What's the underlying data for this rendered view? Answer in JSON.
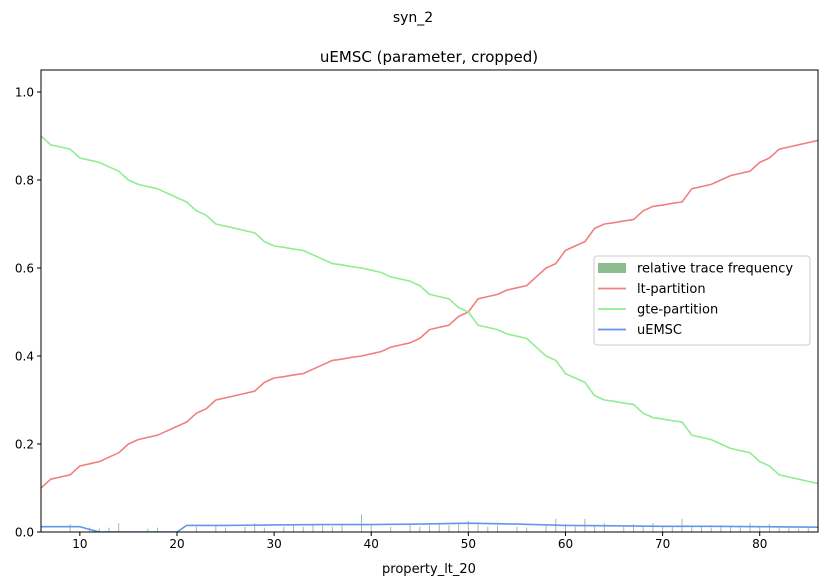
{
  "figure": {
    "suptitle": "syn_2"
  },
  "chart_data": {
    "type": "line",
    "title": "uEMSC (parameter, cropped)",
    "xlabel": "property_lt_20",
    "ylabel": "",
    "xlim": [
      6,
      86
    ],
    "ylim": [
      0,
      1.05
    ],
    "x_ticks": [
      10,
      20,
      30,
      40,
      50,
      60,
      70,
      80
    ],
    "y_ticks": [
      0.0,
      0.2,
      0.4,
      0.6,
      0.8,
      1.0
    ],
    "x_tick_labels": [
      "10",
      "20",
      "30",
      "40",
      "50",
      "60",
      "70",
      "80"
    ],
    "y_tick_labels": [
      "0.0",
      "0.2",
      "0.4",
      "0.6",
      "0.8",
      "1.0"
    ],
    "grid": false,
    "legend_position": "center-right",
    "legend": [
      {
        "label": "relative trace frequency",
        "kind": "patch",
        "color": "#8fbc8f"
      },
      {
        "label": "lt-partition",
        "kind": "line",
        "color": "#f08080"
      },
      {
        "label": "gte-partition",
        "kind": "line",
        "color": "#90ee90"
      },
      {
        "label": "uEMSC",
        "kind": "line",
        "color": "#6495ed"
      }
    ],
    "series": [
      {
        "name": "lt-partition",
        "color": "#f08080",
        "points": [
          [
            6,
            0.1
          ],
          [
            7,
            0.12
          ],
          [
            8,
            0.125
          ],
          [
            9,
            0.13
          ],
          [
            10,
            0.15
          ],
          [
            11,
            0.155
          ],
          [
            12,
            0.16
          ],
          [
            13,
            0.17
          ],
          [
            14,
            0.18
          ],
          [
            15,
            0.2
          ],
          [
            16,
            0.21
          ],
          [
            17,
            0.215
          ],
          [
            18,
            0.22
          ],
          [
            19,
            0.23
          ],
          [
            20,
            0.24
          ],
          [
            21,
            0.25
          ],
          [
            22,
            0.27
          ],
          [
            23,
            0.28
          ],
          [
            24,
            0.3
          ],
          [
            25,
            0.305
          ],
          [
            26,
            0.31
          ],
          [
            27,
            0.315
          ],
          [
            28,
            0.32
          ],
          [
            29,
            0.34
          ],
          [
            30,
            0.35
          ],
          [
            31,
            0.353
          ],
          [
            32,
            0.357
          ],
          [
            33,
            0.36
          ],
          [
            34,
            0.37
          ],
          [
            35,
            0.38
          ],
          [
            36,
            0.39
          ],
          [
            37,
            0.393
          ],
          [
            38,
            0.397
          ],
          [
            39,
            0.4
          ],
          [
            40,
            0.405
          ],
          [
            41,
            0.41
          ],
          [
            42,
            0.42
          ],
          [
            43,
            0.425
          ],
          [
            44,
            0.43
          ],
          [
            45,
            0.44
          ],
          [
            46,
            0.46
          ],
          [
            47,
            0.465
          ],
          [
            48,
            0.47
          ],
          [
            49,
            0.49
          ],
          [
            50,
            0.5
          ],
          [
            51,
            0.53
          ],
          [
            52,
            0.535
          ],
          [
            53,
            0.54
          ],
          [
            54,
            0.55
          ],
          [
            55,
            0.555
          ],
          [
            56,
            0.56
          ],
          [
            57,
            0.58
          ],
          [
            58,
            0.6
          ],
          [
            59,
            0.61
          ],
          [
            60,
            0.64
          ],
          [
            61,
            0.65
          ],
          [
            62,
            0.66
          ],
          [
            63,
            0.69
          ],
          [
            64,
            0.7
          ],
          [
            65,
            0.703
          ],
          [
            66,
            0.707
          ],
          [
            67,
            0.71
          ],
          [
            68,
            0.73
          ],
          [
            69,
            0.74
          ],
          [
            70,
            0.743
          ],
          [
            71,
            0.747
          ],
          [
            72,
            0.75
          ],
          [
            73,
            0.78
          ],
          [
            74,
            0.785
          ],
          [
            75,
            0.79
          ],
          [
            76,
            0.8
          ],
          [
            77,
            0.81
          ],
          [
            78,
            0.815
          ],
          [
            79,
            0.82
          ],
          [
            80,
            0.84
          ],
          [
            81,
            0.85
          ],
          [
            82,
            0.87
          ],
          [
            83,
            0.875
          ],
          [
            84,
            0.88
          ],
          [
            85,
            0.885
          ],
          [
            86,
            0.89
          ]
        ]
      },
      {
        "name": "gte-partition",
        "color": "#90ee90",
        "points": [
          [
            6,
            0.9
          ],
          [
            7,
            0.88
          ],
          [
            8,
            0.875
          ],
          [
            9,
            0.87
          ],
          [
            10,
            0.85
          ],
          [
            11,
            0.845
          ],
          [
            12,
            0.84
          ],
          [
            13,
            0.83
          ],
          [
            14,
            0.82
          ],
          [
            15,
            0.8
          ],
          [
            16,
            0.79
          ],
          [
            17,
            0.785
          ],
          [
            18,
            0.78
          ],
          [
            19,
            0.77
          ],
          [
            20,
            0.76
          ],
          [
            21,
            0.75
          ],
          [
            22,
            0.73
          ],
          [
            23,
            0.72
          ],
          [
            24,
            0.7
          ],
          [
            25,
            0.695
          ],
          [
            26,
            0.69
          ],
          [
            27,
            0.685
          ],
          [
            28,
            0.68
          ],
          [
            29,
            0.66
          ],
          [
            30,
            0.65
          ],
          [
            31,
            0.647
          ],
          [
            32,
            0.643
          ],
          [
            33,
            0.64
          ],
          [
            34,
            0.63
          ],
          [
            35,
            0.62
          ],
          [
            36,
            0.61
          ],
          [
            37,
            0.607
          ],
          [
            38,
            0.603
          ],
          [
            39,
            0.6
          ],
          [
            40,
            0.595
          ],
          [
            41,
            0.59
          ],
          [
            42,
            0.58
          ],
          [
            43,
            0.575
          ],
          [
            44,
            0.57
          ],
          [
            45,
            0.56
          ],
          [
            46,
            0.54
          ],
          [
            47,
            0.535
          ],
          [
            48,
            0.53
          ],
          [
            49,
            0.51
          ],
          [
            50,
            0.5
          ],
          [
            51,
            0.47
          ],
          [
            52,
            0.465
          ],
          [
            53,
            0.46
          ],
          [
            54,
            0.45
          ],
          [
            55,
            0.445
          ],
          [
            56,
            0.44
          ],
          [
            57,
            0.42
          ],
          [
            58,
            0.4
          ],
          [
            59,
            0.39
          ],
          [
            60,
            0.36
          ],
          [
            61,
            0.35
          ],
          [
            62,
            0.34
          ],
          [
            63,
            0.31
          ],
          [
            64,
            0.3
          ],
          [
            65,
            0.297
          ],
          [
            66,
            0.293
          ],
          [
            67,
            0.29
          ],
          [
            68,
            0.27
          ],
          [
            69,
            0.26
          ],
          [
            70,
            0.257
          ],
          [
            71,
            0.253
          ],
          [
            72,
            0.25
          ],
          [
            73,
            0.22
          ],
          [
            74,
            0.215
          ],
          [
            75,
            0.21
          ],
          [
            76,
            0.2
          ],
          [
            77,
            0.19
          ],
          [
            78,
            0.185
          ],
          [
            79,
            0.18
          ],
          [
            80,
            0.16
          ],
          [
            81,
            0.15
          ],
          [
            82,
            0.13
          ],
          [
            83,
            0.125
          ],
          [
            84,
            0.12
          ],
          [
            85,
            0.115
          ],
          [
            86,
            0.11
          ]
        ]
      },
      {
        "name": "uEMSC",
        "color": "#6495ed",
        "points": [
          [
            6,
            0.012
          ],
          [
            8,
            0.012
          ],
          [
            10,
            0.012
          ],
          [
            12,
            0.0
          ],
          [
            14,
            0.0
          ],
          [
            16,
            0.0
          ],
          [
            18,
            0.0
          ],
          [
            20,
            0.0
          ],
          [
            21,
            0.015
          ],
          [
            25,
            0.015
          ],
          [
            30,
            0.016
          ],
          [
            35,
            0.017
          ],
          [
            40,
            0.017
          ],
          [
            45,
            0.018
          ],
          [
            50,
            0.02
          ],
          [
            55,
            0.018
          ],
          [
            60,
            0.015
          ],
          [
            65,
            0.014
          ],
          [
            70,
            0.013
          ],
          [
            75,
            0.013
          ],
          [
            80,
            0.012
          ],
          [
            86,
            0.011
          ]
        ]
      }
    ],
    "relative_trace_frequency": {
      "color": "#8fbc8f",
      "x": [
        6,
        9,
        11,
        12,
        13,
        14,
        17,
        18,
        22,
        24,
        25,
        27,
        28,
        29,
        31,
        32,
        33,
        34,
        35,
        36,
        37,
        39,
        40,
        42,
        44,
        45,
        46,
        47,
        48,
        49,
        50,
        51,
        52,
        53,
        55,
        56,
        58,
        59,
        60,
        61,
        62,
        63,
        64,
        66,
        67,
        68,
        69,
        70,
        71,
        72,
        73,
        74,
        75,
        76,
        77,
        78,
        79,
        80,
        81,
        82,
        83,
        84,
        85,
        86
      ],
      "values": [
        0.012,
        0.018,
        0.01,
        0.008,
        0.01,
        0.02,
        0.008,
        0.01,
        0.012,
        0.015,
        0.01,
        0.012,
        0.02,
        0.01,
        0.012,
        0.015,
        0.012,
        0.018,
        0.015,
        0.012,
        0.018,
        0.04,
        0.015,
        0.012,
        0.018,
        0.012,
        0.015,
        0.02,
        0.015,
        0.018,
        0.025,
        0.018,
        0.012,
        0.015,
        0.012,
        0.01,
        0.015,
        0.03,
        0.018,
        0.012,
        0.03,
        0.015,
        0.02,
        0.012,
        0.018,
        0.012,
        0.02,
        0.015,
        0.012,
        0.03,
        0.015,
        0.012,
        0.01,
        0.015,
        0.012,
        0.01,
        0.02,
        0.012,
        0.018,
        0.01,
        0.012,
        0.008,
        0.012,
        0.01
      ]
    }
  }
}
